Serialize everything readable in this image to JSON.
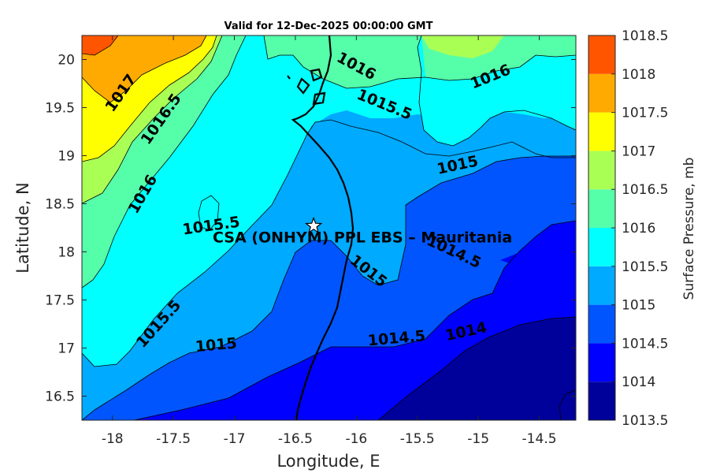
{
  "chart_data": {
    "type": "contour",
    "title": "Valid for 12-Dec-2025 00:00:00 GMT",
    "xlabel": "Longitude, E",
    "ylabel": "Latitude, N",
    "xlim": [
      -18.25,
      -14.2
    ],
    "ylim": [
      16.25,
      20.25
    ],
    "x_ticks": [
      -18,
      -17.5,
      -17,
      -16.5,
      -16,
      -15.5,
      -15,
      -14.5
    ],
    "y_ticks": [
      16.5,
      17,
      17.5,
      18,
      18.5,
      19,
      19.5,
      20
    ],
    "colorbar": {
      "label": "Surface Pressure, mb",
      "levels": [
        1013.5,
        1014,
        1014.5,
        1015,
        1015.5,
        1016,
        1016.5,
        1017,
        1017.5,
        1018,
        1018.5
      ],
      "colors": [
        "#00009b",
        "#0000ff",
        "#0055ff",
        "#00aaff",
        "#00ffff",
        "#55ffaa",
        "#aaff55",
        "#ffff00",
        "#ffaa00",
        "#ff5500",
        "#ff0000"
      ]
    },
    "contour_labels": [
      {
        "text": "1017",
        "lon": -17.93,
        "lat": 19.65
      },
      {
        "text": "1016.5",
        "lon": -17.6,
        "lat": 19.38
      },
      {
        "text": "1016",
        "lon": -17.75,
        "lat": 18.6
      },
      {
        "text": "1015.5",
        "lon": -17.19,
        "lat": 18.27
      },
      {
        "text": "1015.5",
        "lon": -17.62,
        "lat": 17.25
      },
      {
        "text": "1015",
        "lon": -17.15,
        "lat": 17.03
      },
      {
        "text": "1016",
        "lon": -16.0,
        "lat": 19.93
      },
      {
        "text": "1015.5",
        "lon": -15.77,
        "lat": 19.53
      },
      {
        "text": "1016",
        "lon": -14.9,
        "lat": 19.82
      },
      {
        "text": "1015",
        "lon": -15.17,
        "lat": 18.9
      },
      {
        "text": "1014.5",
        "lon": -15.2,
        "lat": 18.0
      },
      {
        "text": "1015",
        "lon": -15.9,
        "lat": 17.8
      },
      {
        "text": "1014.5",
        "lon": -15.67,
        "lat": 17.1
      },
      {
        "text": "1014",
        "lon": -15.1,
        "lat": 17.17
      }
    ],
    "site": {
      "name": "CSA (ONHYM) PPL EBS  – Mauritania",
      "lon": -16.35,
      "lat": 18.27
    }
  }
}
